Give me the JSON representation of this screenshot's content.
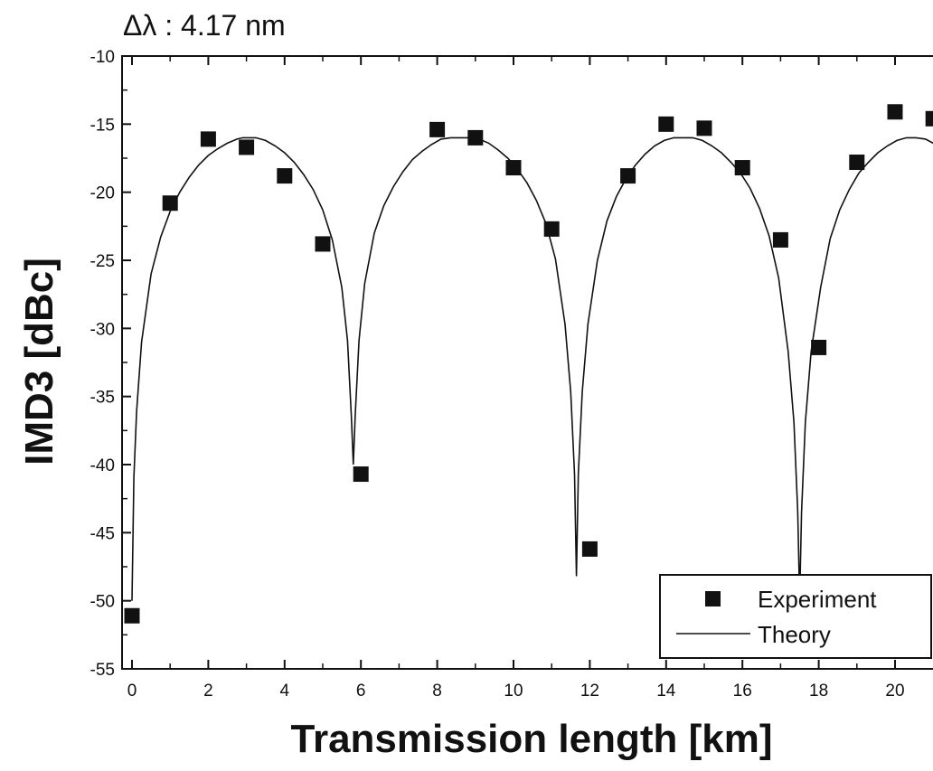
{
  "chart_data": {
    "type": "scatter",
    "annotation": "Δλ : 4.17 nm",
    "xlabel": "Transmission length [km]",
    "ylabel": "IMD3 [dBc]",
    "xlim": [
      -0.2,
      21
    ],
    "ylim": [
      -55,
      -10
    ],
    "xticks": [
      "0",
      "2",
      "4",
      "6",
      "8",
      "10",
      "12",
      "14",
      "16",
      "18",
      "20"
    ],
    "yticks": [
      "-10",
      "-15",
      "-20",
      "-25",
      "-30",
      "-35",
      "-40",
      "-45",
      "-50",
      "-55"
    ],
    "grid": false,
    "legend_position": "bottom-right",
    "series": [
      {
        "name": "Experiment",
        "type": "scatter",
        "marker": "square",
        "color": "#111111",
        "x": [
          0,
          1,
          2,
          3,
          4,
          5,
          6,
          8,
          9,
          10,
          11,
          12,
          13,
          14,
          15,
          16,
          17,
          18,
          19,
          20,
          21
        ],
        "y": [
          -51.1,
          -20.8,
          -16.1,
          -16.7,
          -18.8,
          -23.8,
          -40.7,
          -15.4,
          -16.0,
          -18.2,
          -22.7,
          -46.2,
          -18.8,
          -15.0,
          -15.3,
          -18.2,
          -23.5,
          -31.4,
          -17.8,
          -14.1,
          -14.6
        ]
      },
      {
        "name": "Theory",
        "type": "line",
        "color": "#111111",
        "x": [
          0,
          0.05,
          0.12,
          0.25,
          0.5,
          0.75,
          1.0,
          1.25,
          1.5,
          1.75,
          2.0,
          2.25,
          2.5,
          2.75,
          2.9,
          3.0,
          3.25,
          3.5,
          3.75,
          4.0,
          4.25,
          4.5,
          4.75,
          5.0,
          5.25,
          5.5,
          5.65,
          5.75,
          5.8,
          5.85,
          5.95,
          6.1,
          6.35,
          6.6,
          6.85,
          7.1,
          7.35,
          7.6,
          7.85,
          8.1,
          8.35,
          8.6,
          8.75,
          8.85,
          9.1,
          9.35,
          9.6,
          9.85,
          10.1,
          10.35,
          10.6,
          10.85,
          11.1,
          11.35,
          11.5,
          11.6,
          11.65,
          11.7,
          11.8,
          11.95,
          12.2,
          12.45,
          12.7,
          12.95,
          13.2,
          13.45,
          13.7,
          13.95,
          14.2,
          14.45,
          14.6,
          14.7,
          14.95,
          15.2,
          15.45,
          15.7,
          15.95,
          16.2,
          16.45,
          16.7,
          16.95,
          17.2,
          17.35,
          17.45,
          17.5,
          17.55,
          17.65,
          17.8,
          18.05,
          18.3,
          18.55,
          18.8,
          19.05,
          19.3,
          19.55,
          19.8,
          20.05,
          20.3,
          20.45,
          20.55,
          20.8,
          21.0
        ],
        "y": [
          -50.0,
          -40.9,
          -36.1,
          -31.0,
          -26.0,
          -23.3,
          -21.4,
          -20.0,
          -18.9,
          -18.0,
          -17.3,
          -16.8,
          -16.4,
          -16.1,
          -16.0,
          -16.0,
          -16.0,
          -16.2,
          -16.6,
          -17.1,
          -17.8,
          -18.7,
          -19.8,
          -21.3,
          -23.5,
          -27.0,
          -30.9,
          -36.4,
          -40.0,
          -36.4,
          -30.9,
          -26.7,
          -23.0,
          -21.0,
          -19.6,
          -18.5,
          -17.6,
          -17.0,
          -16.5,
          -16.1,
          -16.0,
          -16.0,
          -16.0,
          -16.0,
          -16.1,
          -16.4,
          -16.9,
          -17.5,
          -18.3,
          -19.3,
          -20.6,
          -22.3,
          -24.9,
          -29.7,
          -34.7,
          -40.7,
          -48.2,
          -40.7,
          -34.7,
          -29.7,
          -25.0,
          -22.1,
          -20.3,
          -19.0,
          -18.0,
          -17.2,
          -16.6,
          -16.2,
          -16.0,
          -16.0,
          -16.0,
          -16.0,
          -16.2,
          -16.6,
          -17.1,
          -17.8,
          -18.6,
          -19.7,
          -21.2,
          -23.2,
          -26.3,
          -31.7,
          -36.9,
          -43.5,
          -50.0,
          -43.5,
          -36.9,
          -31.7,
          -27.0,
          -23.4,
          -21.3,
          -19.8,
          -18.6,
          -17.8,
          -17.1,
          -16.6,
          -16.2,
          -16.0,
          -16.0,
          -16.0,
          -16.1,
          -16.4
        ]
      }
    ]
  }
}
